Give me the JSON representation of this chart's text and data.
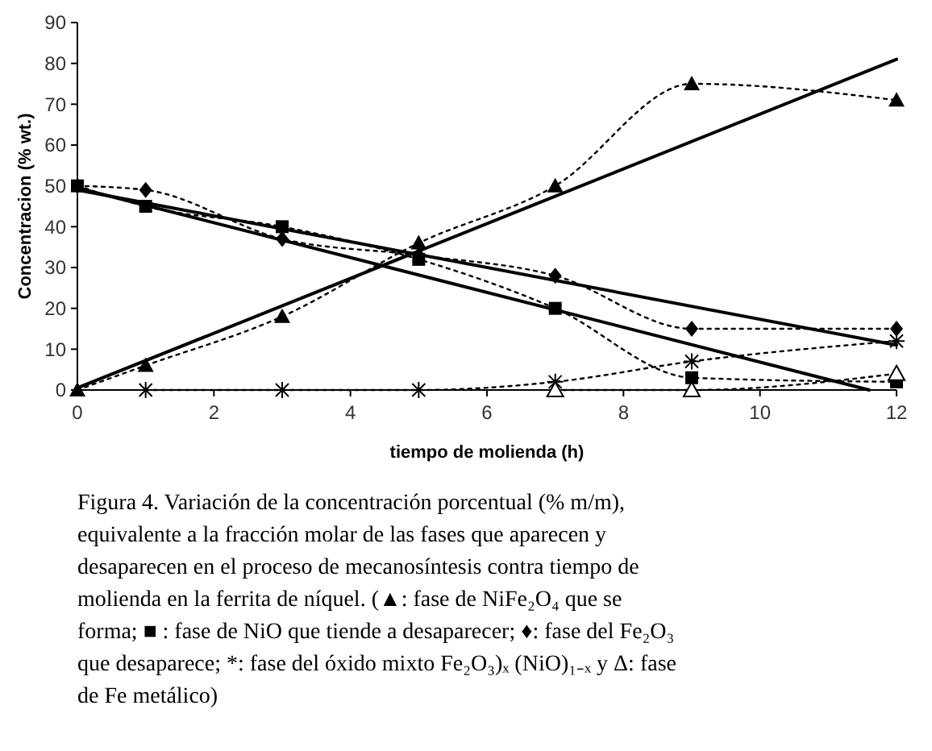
{
  "chart_data": {
    "type": "line",
    "xlabel": "tiempo de molienda (h)",
    "ylabel": "Concentracion (% wt.)",
    "xlim": [
      0,
      12
    ],
    "xticks": [
      0,
      2,
      4,
      6,
      8,
      10,
      12
    ],
    "ylim": [
      0,
      90
    ],
    "yticks": [
      0,
      10,
      20,
      30,
      40,
      50,
      60,
      70,
      80,
      90
    ],
    "grid": false,
    "series": [
      {
        "color": "#000000",
        "marker": "triangle",
        "line_style": "dotted",
        "x": [
          0,
          1,
          3,
          5,
          7,
          9,
          12
        ],
        "values": [
          0,
          6,
          18,
          36,
          50,
          75,
          71
        ]
      },
      {
        "color": "#000000",
        "marker": "square",
        "line_style": "dotted",
        "x": [
          0,
          1,
          3,
          5,
          7,
          9,
          12
        ],
        "values": [
          50,
          45,
          40,
          32,
          20,
          3,
          2
        ]
      },
      {
        "color": "#000000",
        "marker": "diamond",
        "line_style": "dotted",
        "x": [
          0,
          1,
          3,
          5,
          7,
          9,
          12
        ],
        "values": [
          50,
          49,
          37,
          33,
          28,
          15,
          15
        ]
      },
      {
        "color": "#000000",
        "marker": "cross",
        "line_style": "dotted",
        "x": [
          1,
          3,
          5,
          7,
          9,
          12
        ],
        "values": [
          0,
          0,
          0,
          2,
          7,
          12
        ]
      },
      {
        "color": "#000000",
        "marker": "triangle-open",
        "line_style": "dotted",
        "x": [
          7,
          9,
          12
        ],
        "values": [
          0,
          0,
          4
        ]
      },
      {
        "color": "#000000",
        "marker": "none",
        "line_style": "solid",
        "x": [
          0,
          12
        ],
        "values": [
          0.5,
          81
        ]
      },
      {
        "color": "#000000",
        "marker": "none",
        "line_style": "solid",
        "x": [
          0,
          11.6
        ],
        "values": [
          49.5,
          0
        ]
      },
      {
        "color": "#000000",
        "marker": "none",
        "line_style": "solid",
        "x": [
          0,
          12
        ],
        "values": [
          49,
          11
        ]
      }
    ],
    "annotations": [
      "Figura 4. Variación de la concentración porcentual (% m/m), equivalente a la fracción molar de las fases que aparecen y desaparecen en el proceso de mecanosíntesis contra tiempo de molienda en la ferrita de níquel. (▲: fase de NiFe₂O₄ que se forma; ■ : fase de NiO que tiende a desaparecer; ♦: fase del Fe₂O₃ que desaparece; *: fase del óxido mixto Fe₂O₃)ₓ (NiO)₁₋ₓ y Δ: fase de Fe metálico)"
    ]
  }
}
